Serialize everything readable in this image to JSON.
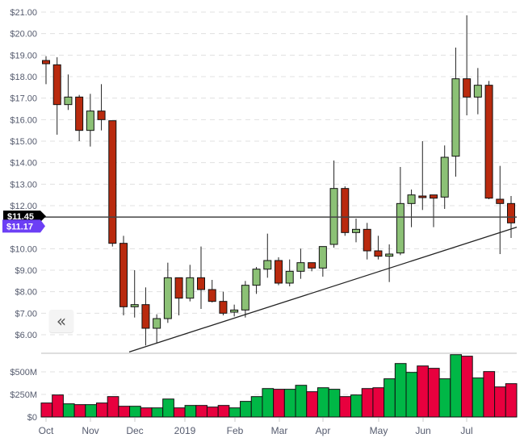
{
  "chart_data": {
    "type": "candlestick",
    "title": "",
    "price_axis": {
      "ticks": [
        "$21.00",
        "$20.00",
        "$19.00",
        "$18.00",
        "$17.00",
        "$16.00",
        "$15.00",
        "$14.00",
        "$13.00",
        "$12.00",
        "$10.00",
        "$9.00",
        "$8.00",
        "$7.00",
        "$6.00"
      ],
      "range": [
        5.4,
        21.0
      ]
    },
    "volume_axis": {
      "ticks": [
        "$500M",
        "$250M",
        "$0"
      ],
      "range": [
        0,
        700
      ]
    },
    "x_ticks": [
      "Oct",
      "Nov",
      "Dec",
      "2019",
      "Feb",
      "Mar",
      "Apr",
      "May",
      "Jun",
      "Jul"
    ],
    "price_labels": {
      "last_price_black": "$11.45",
      "current_price_purple": "$11.17",
      "horizontal_line_value": 11.47
    },
    "trendline": {
      "from": [
        160,
        5.2
      ],
      "to": [
        640,
        11.0
      ]
    },
    "candles": [
      {
        "o": 18.75,
        "h": 18.95,
        "l": 17.65,
        "c": 18.6
      },
      {
        "o": 18.55,
        "h": 18.9,
        "l": 15.3,
        "c": 16.7
      },
      {
        "o": 16.7,
        "h": 18.1,
        "l": 16.45,
        "c": 17.05
      },
      {
        "o": 17.05,
        "h": 17.15,
        "l": 15.0,
        "c": 15.5
      },
      {
        "o": 15.5,
        "h": 17.2,
        "l": 14.75,
        "c": 16.4
      },
      {
        "o": 16.4,
        "h": 17.65,
        "l": 15.5,
        "c": 16.0
      },
      {
        "o": 15.95,
        "h": 15.95,
        "l": 10.1,
        "c": 10.25
      },
      {
        "o": 10.25,
        "h": 10.6,
        "l": 6.9,
        "c": 7.3
      },
      {
        "o": 7.3,
        "h": 9.0,
        "l": 6.8,
        "c": 7.4
      },
      {
        "o": 7.4,
        "h": 8.2,
        "l": 5.5,
        "c": 6.3
      },
      {
        "o": 6.3,
        "h": 6.95,
        "l": 5.6,
        "c": 6.75
      },
      {
        "o": 6.75,
        "h": 9.35,
        "l": 6.55,
        "c": 8.65
      },
      {
        "o": 8.65,
        "h": 8.65,
        "l": 6.9,
        "c": 7.7
      },
      {
        "o": 7.7,
        "h": 9.25,
        "l": 7.55,
        "c": 8.65
      },
      {
        "o": 8.65,
        "h": 10.1,
        "l": 7.2,
        "c": 8.1
      },
      {
        "o": 8.1,
        "h": 8.55,
        "l": 7.5,
        "c": 7.55
      },
      {
        "o": 7.55,
        "h": 8.0,
        "l": 6.9,
        "c": 7.0
      },
      {
        "o": 7.05,
        "h": 7.4,
        "l": 6.85,
        "c": 7.15
      },
      {
        "o": 7.15,
        "h": 8.5,
        "l": 6.8,
        "c": 8.3
      },
      {
        "o": 8.3,
        "h": 9.15,
        "l": 7.9,
        "c": 9.05
      },
      {
        "o": 9.05,
        "h": 10.7,
        "l": 8.65,
        "c": 9.45
      },
      {
        "o": 9.45,
        "h": 9.6,
        "l": 8.3,
        "c": 8.4
      },
      {
        "o": 8.4,
        "h": 9.5,
        "l": 8.25,
        "c": 8.95
      },
      {
        "o": 8.95,
        "h": 10.0,
        "l": 8.6,
        "c": 9.35
      },
      {
        "o": 9.35,
        "h": 9.35,
        "l": 8.95,
        "c": 9.1
      },
      {
        "o": 9.1,
        "h": 9.9,
        "l": 8.7,
        "c": 10.1
      },
      {
        "o": 10.2,
        "h": 14.1,
        "l": 10.05,
        "c": 12.8
      },
      {
        "o": 12.8,
        "h": 12.9,
        "l": 10.6,
        "c": 10.75
      },
      {
        "o": 10.75,
        "h": 11.4,
        "l": 10.3,
        "c": 10.9
      },
      {
        "o": 10.9,
        "h": 11.2,
        "l": 9.5,
        "c": 9.9
      },
      {
        "o": 9.9,
        "h": 10.6,
        "l": 9.5,
        "c": 9.65
      },
      {
        "o": 9.65,
        "h": 10.2,
        "l": 8.45,
        "c": 9.75
      },
      {
        "o": 9.8,
        "h": 13.8,
        "l": 9.7,
        "c": 12.1
      },
      {
        "o": 12.1,
        "h": 12.75,
        "l": 11.0,
        "c": 12.5
      },
      {
        "o": 12.45,
        "h": 15.0,
        "l": 11.8,
        "c": 12.4
      },
      {
        "o": 12.5,
        "h": 12.5,
        "l": 11.0,
        "c": 12.35
      },
      {
        "o": 12.4,
        "h": 14.8,
        "l": 11.85,
        "c": 14.25
      },
      {
        "o": 14.3,
        "h": 19.35,
        "l": 13.35,
        "c": 17.9
      },
      {
        "o": 17.9,
        "h": 20.85,
        "l": 16.2,
        "c": 17.05
      },
      {
        "o": 17.05,
        "h": 18.4,
        "l": 16.25,
        "c": 17.6
      },
      {
        "o": 17.6,
        "h": 17.8,
        "l": 12.3,
        "c": 12.35
      },
      {
        "o": 12.3,
        "h": 13.85,
        "l": 9.75,
        "c": 12.1
      }
    ],
    "last_candle": {
      "o": 12.1,
      "h": 12.45,
      "l": 10.5,
      "c": 11.2
    },
    "volume": [
      {
        "v": 155,
        "dir": "down"
      },
      {
        "v": 244,
        "dir": "down"
      },
      {
        "v": 146,
        "dir": "up"
      },
      {
        "v": 137,
        "dir": "down"
      },
      {
        "v": 137,
        "dir": "up"
      },
      {
        "v": 155,
        "dir": "down"
      },
      {
        "v": 226,
        "dir": "down"
      },
      {
        "v": 119,
        "dir": "down"
      },
      {
        "v": 119,
        "dir": "up"
      },
      {
        "v": 101,
        "dir": "down"
      },
      {
        "v": 101,
        "dir": "up"
      },
      {
        "v": 199,
        "dir": "up"
      },
      {
        "v": 101,
        "dir": "down"
      },
      {
        "v": 128,
        "dir": "up"
      },
      {
        "v": 128,
        "dir": "down"
      },
      {
        "v": 110,
        "dir": "down"
      },
      {
        "v": 128,
        "dir": "down"
      },
      {
        "v": 101,
        "dir": "up"
      },
      {
        "v": 173,
        "dir": "up"
      },
      {
        "v": 226,
        "dir": "up"
      },
      {
        "v": 315,
        "dir": "up"
      },
      {
        "v": 307,
        "dir": "down"
      },
      {
        "v": 307,
        "dir": "up"
      },
      {
        "v": 351,
        "dir": "up"
      },
      {
        "v": 280,
        "dir": "down"
      },
      {
        "v": 324,
        "dir": "up"
      },
      {
        "v": 307,
        "dir": "up"
      },
      {
        "v": 226,
        "dir": "down"
      },
      {
        "v": 244,
        "dir": "up"
      },
      {
        "v": 315,
        "dir": "down"
      },
      {
        "v": 324,
        "dir": "down"
      },
      {
        "v": 423,
        "dir": "up"
      },
      {
        "v": 592,
        "dir": "up"
      },
      {
        "v": 494,
        "dir": "up"
      },
      {
        "v": 565,
        "dir": "down"
      },
      {
        "v": 539,
        "dir": "down"
      },
      {
        "v": 423,
        "dir": "up"
      },
      {
        "v": 690,
        "dir": "up"
      },
      {
        "v": 673,
        "dir": "down"
      },
      {
        "v": 432,
        "dir": "up"
      },
      {
        "v": 503,
        "dir": "down"
      },
      {
        "v": 333,
        "dir": "down"
      },
      {
        "v": 369,
        "dir": "down"
      }
    ],
    "colors": {
      "up_candle": "#8cc176",
      "down_candle": "#b92a0e",
      "up_volume": "#00b746",
      "down_volume": "#e8003e",
      "grid": "#e0e0e0",
      "label_purple": "#6c3ff5",
      "label_black": "#000000"
    },
    "legend": [],
    "grid": true
  },
  "controls": {
    "scroll_left_label": "«"
  }
}
